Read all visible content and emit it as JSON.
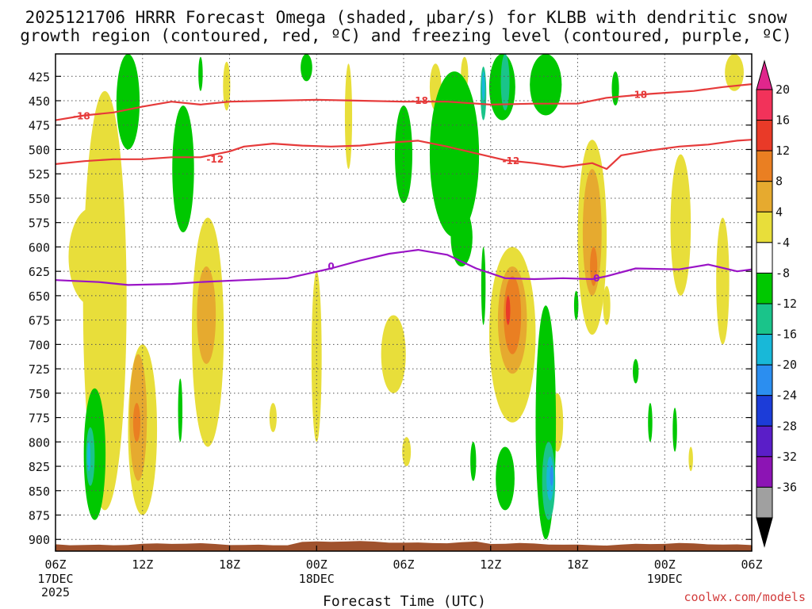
{
  "chart_data": {
    "type": "heatmap",
    "title_line1": "2025121706 HRRR Forecast Omega (shaded, μbar/s) for KLBB with dendritic snow",
    "title_line2": "growth region (contoured, red, ºC) and freezing level (contoured, purple, ºC)",
    "xlabel": "Forecast Time (UTC)",
    "credit": "coolwx.com/models",
    "x_ticks": [
      {
        "hour": 0,
        "label": "06Z",
        "sub": [
          "17DEC",
          "2025"
        ]
      },
      {
        "hour": 6,
        "label": "12Z",
        "sub": []
      },
      {
        "hour": 12,
        "label": "18Z",
        "sub": []
      },
      {
        "hour": 18,
        "label": "00Z",
        "sub": [
          "18DEC"
        ]
      },
      {
        "hour": 24,
        "label": "06Z",
        "sub": []
      },
      {
        "hour": 30,
        "label": "12Z",
        "sub": []
      },
      {
        "hour": 36,
        "label": "18Z",
        "sub": []
      },
      {
        "hour": 42,
        "label": "00Z",
        "sub": [
          "19DEC"
        ]
      },
      {
        "hour": 48,
        "label": "06Z",
        "sub": []
      }
    ],
    "x_range": [
      0,
      48
    ],
    "y_ticks": [
      425,
      450,
      475,
      500,
      525,
      550,
      575,
      600,
      625,
      650,
      675,
      700,
      725,
      750,
      775,
      800,
      825,
      850,
      875,
      900
    ],
    "y_range": [
      402,
      912
    ],
    "surface_pressure": 905,
    "colorbar": {
      "labels": [
        "20",
        "16",
        "12",
        "8",
        "4",
        "-4",
        "-8",
        "-12",
        "-16",
        "-20",
        "-24",
        "-28",
        "-32",
        "-36"
      ],
      "colors": [
        "#f2325a",
        "#e93a28",
        "#ea7f22",
        "#e6aa2f",
        "#e8de3a",
        "#ffffff",
        "#00c800",
        "#1ac48a",
        "#18b8d8",
        "#2b8ef0",
        "#1c3cd8",
        "#5a1ec8",
        "#8c14b4",
        "#a0a0a0"
      ],
      "top_color": "#e0268c",
      "bottom_color": "#000000"
    },
    "contours": [
      {
        "name": "dgz-minus18",
        "label": "-18",
        "color": "#e63a3a",
        "points": [
          [
            0,
            470
          ],
          [
            2,
            465
          ],
          [
            4,
            462
          ],
          [
            6,
            456
          ],
          [
            8,
            451
          ],
          [
            10,
            454
          ],
          [
            12,
            451
          ],
          [
            15,
            450
          ],
          [
            18,
            449
          ],
          [
            21,
            450
          ],
          [
            24,
            451
          ],
          [
            27,
            451
          ],
          [
            30,
            454
          ],
          [
            33,
            453
          ],
          [
            36,
            453
          ],
          [
            38,
            447
          ],
          [
            41,
            443
          ],
          [
            44,
            440
          ],
          [
            46,
            436
          ],
          [
            48,
            433
          ]
        ],
        "label_positions": [
          [
            1.8,
            466
          ],
          [
            25.1,
            450
          ],
          [
            40.2,
            444
          ]
        ]
      },
      {
        "name": "dgz-minus12",
        "label": "-12",
        "color": "#e63a3a",
        "points": [
          [
            0,
            515
          ],
          [
            2,
            512
          ],
          [
            4,
            510
          ],
          [
            6,
            510
          ],
          [
            8,
            508
          ],
          [
            10,
            508
          ],
          [
            12,
            502
          ],
          [
            13,
            497
          ],
          [
            15,
            494
          ],
          [
            17,
            496
          ],
          [
            19,
            497
          ],
          [
            21,
            496
          ],
          [
            23,
            493
          ],
          [
            25,
            491
          ],
          [
            27,
            497
          ],
          [
            29,
            504
          ],
          [
            31,
            511
          ],
          [
            33,
            514
          ],
          [
            35,
            518
          ],
          [
            37,
            514
          ],
          [
            38,
            520
          ],
          [
            39,
            506
          ],
          [
            41,
            501
          ],
          [
            43,
            497
          ],
          [
            45,
            495
          ],
          [
            47,
            491
          ],
          [
            48,
            490
          ]
        ],
        "label_positions": [
          [
            11,
            510
          ],
          [
            31.4,
            512
          ]
        ]
      },
      {
        "name": "freezing-level",
        "label": "0",
        "color": "#9a14c6",
        "points": [
          [
            0,
            634
          ],
          [
            3,
            636
          ],
          [
            5,
            639
          ],
          [
            8,
            638
          ],
          [
            10,
            636
          ],
          [
            13,
            634
          ],
          [
            16,
            632
          ],
          [
            19,
            622
          ],
          [
            21,
            614
          ],
          [
            23,
            607
          ],
          [
            25,
            603
          ],
          [
            27,
            608
          ],
          [
            29,
            622
          ],
          [
            31,
            632
          ],
          [
            33,
            633
          ],
          [
            35,
            632
          ],
          [
            37,
            633
          ],
          [
            38,
            630
          ],
          [
            40,
            622
          ],
          [
            43,
            623
          ],
          [
            45,
            618
          ],
          [
            47,
            625
          ],
          [
            48,
            623
          ]
        ],
        "label_positions": [
          [
            19,
            620
          ],
          [
            37.3,
            632
          ]
        ]
      }
    ],
    "shaded_cells": [
      {
        "value": 4,
        "hour": 3.4,
        "hour_w": 3.0,
        "p_top": 440,
        "p_bot": 870
      },
      {
        "value": 4,
        "hour": 2.5,
        "hour_w": 3.2,
        "p_top": 560,
        "p_bot": 660
      },
      {
        "value": 4,
        "hour": 6.0,
        "hour_w": 2.0,
        "p_top": 700,
        "p_bot": 875
      },
      {
        "value": 8,
        "hour": 5.7,
        "hour_w": 1.2,
        "p_top": 710,
        "p_bot": 840
      },
      {
        "value": 12,
        "hour": 5.6,
        "hour_w": 0.5,
        "p_top": 760,
        "p_bot": 800
      },
      {
        "value": 4,
        "hour": 10.5,
        "hour_w": 2.2,
        "p_top": 570,
        "p_bot": 805
      },
      {
        "value": 8,
        "hour": 10.4,
        "hour_w": 1.3,
        "p_top": 620,
        "p_bot": 720
      },
      {
        "value": 4,
        "hour": 11.8,
        "hour_w": 0.5,
        "p_top": 410,
        "p_bot": 460
      },
      {
        "value": 4,
        "hour": 18.0,
        "hour_w": 0.7,
        "p_top": 625,
        "p_bot": 800
      },
      {
        "value": 4,
        "hour": 20.2,
        "hour_w": 0.5,
        "p_top": 412,
        "p_bot": 520
      },
      {
        "value": 4,
        "hour": 15.0,
        "hour_w": 0.5,
        "p_top": 760,
        "p_bot": 790
      },
      {
        "value": 4,
        "hour": 23.3,
        "hour_w": 1.7,
        "p_top": 670,
        "p_bot": 750
      },
      {
        "value": 4,
        "hour": 24.2,
        "hour_w": 0.6,
        "p_top": 795,
        "p_bot": 825
      },
      {
        "value": 4,
        "hour": 26.2,
        "hour_w": 0.8,
        "p_top": 412,
        "p_bot": 460
      },
      {
        "value": 4,
        "hour": 28.2,
        "hour_w": 0.5,
        "p_top": 405,
        "p_bot": 440
      },
      {
        "value": 4,
        "hour": 31.5,
        "hour_w": 3.2,
        "p_top": 600,
        "p_bot": 780
      },
      {
        "value": 8,
        "hour": 31.5,
        "hour_w": 2.0,
        "p_top": 620,
        "p_bot": 730
      },
      {
        "value": 12,
        "hour": 31.5,
        "hour_w": 1.2,
        "p_top": 630,
        "p_bot": 710
      },
      {
        "value": 16,
        "hour": 31.2,
        "hour_w": 0.3,
        "p_top": 650,
        "p_bot": 680
      },
      {
        "value": 4,
        "hour": 34.6,
        "hour_w": 0.8,
        "p_top": 750,
        "p_bot": 810
      },
      {
        "value": 4,
        "hour": 37.0,
        "hour_w": 2.0,
        "p_top": 490,
        "p_bot": 690
      },
      {
        "value": 8,
        "hour": 37.0,
        "hour_w": 1.3,
        "p_top": 520,
        "p_bot": 650
      },
      {
        "value": 12,
        "hour": 37.1,
        "hour_w": 0.5,
        "p_top": 600,
        "p_bot": 640
      },
      {
        "value": 4,
        "hour": 38.0,
        "hour_w": 0.5,
        "p_top": 640,
        "p_bot": 680
      },
      {
        "value": 4,
        "hour": 43.1,
        "hour_w": 1.4,
        "p_top": 505,
        "p_bot": 650
      },
      {
        "value": 4,
        "hour": 46.0,
        "hour_w": 0.9,
        "p_top": 570,
        "p_bot": 700
      },
      {
        "value": 4,
        "hour": 43.8,
        "hour_w": 0.3,
        "p_top": 805,
        "p_bot": 830
      },
      {
        "value": 4,
        "hour": 46.8,
        "hour_w": 1.3,
        "p_top": 402,
        "p_bot": 440
      },
      {
        "value": -8,
        "hour": 2.7,
        "hour_w": 1.5,
        "p_top": 745,
        "p_bot": 880
      },
      {
        "value": -12,
        "hour": 2.4,
        "hour_w": 0.6,
        "p_top": 785,
        "p_bot": 845
      },
      {
        "value": -16,
        "hour": 2.3,
        "hour_w": 0.2,
        "p_top": 800,
        "p_bot": 830
      },
      {
        "value": -8,
        "hour": 5.0,
        "hour_w": 1.6,
        "p_top": 402,
        "p_bot": 500
      },
      {
        "value": -8,
        "hour": 8.8,
        "hour_w": 1.5,
        "p_top": 455,
        "p_bot": 585
      },
      {
        "value": -8,
        "hour": 8.6,
        "hour_w": 0.3,
        "p_top": 735,
        "p_bot": 800
      },
      {
        "value": -8,
        "hour": 17.3,
        "hour_w": 0.8,
        "p_top": 402,
        "p_bot": 430
      },
      {
        "value": -8,
        "hour": 24.0,
        "hour_w": 1.2,
        "p_top": 455,
        "p_bot": 555
      },
      {
        "value": -8,
        "hour": 27.5,
        "hour_w": 3.4,
        "p_top": 420,
        "p_bot": 590
      },
      {
        "value": -8,
        "hour": 28.0,
        "hour_w": 1.5,
        "p_top": 560,
        "p_bot": 620
      },
      {
        "value": -12,
        "hour": 29.5,
        "hour_w": 0.4,
        "p_top": 415,
        "p_bot": 470
      },
      {
        "value": -16,
        "hour": 29.5,
        "hour_w": 0.2,
        "p_top": 420,
        "p_bot": 450
      },
      {
        "value": -8,
        "hour": 30.8,
        "hour_w": 1.8,
        "p_top": 402,
        "p_bot": 470
      },
      {
        "value": -12,
        "hour": 31.0,
        "hour_w": 0.6,
        "p_top": 402,
        "p_bot": 460
      },
      {
        "value": -8,
        "hour": 33.8,
        "hour_w": 2.2,
        "p_top": 402,
        "p_bot": 465
      },
      {
        "value": -8,
        "hour": 31.0,
        "hour_w": 1.3,
        "p_top": 805,
        "p_bot": 870
      },
      {
        "value": -8,
        "hour": 29.5,
        "hour_w": 0.3,
        "p_top": 600,
        "p_bot": 680
      },
      {
        "value": -8,
        "hour": 33.8,
        "hour_w": 1.4,
        "p_top": 660,
        "p_bot": 900
      },
      {
        "value": -12,
        "hour": 34.0,
        "hour_w": 0.9,
        "p_top": 800,
        "p_bot": 880
      },
      {
        "value": -16,
        "hour": 34.1,
        "hour_w": 0.5,
        "p_top": 815,
        "p_bot": 860
      },
      {
        "value": -20,
        "hour": 34.2,
        "hour_w": 0.2,
        "p_top": 825,
        "p_bot": 845
      },
      {
        "value": -8,
        "hour": 35.9,
        "hour_w": 0.3,
        "p_top": 645,
        "p_bot": 675
      },
      {
        "value": -8,
        "hour": 38.6,
        "hour_w": 0.5,
        "p_top": 420,
        "p_bot": 455
      },
      {
        "value": -8,
        "hour": 40.0,
        "hour_w": 0.4,
        "p_top": 715,
        "p_bot": 740
      },
      {
        "value": -8,
        "hour": 42.7,
        "hour_w": 0.3,
        "p_top": 765,
        "p_bot": 810
      },
      {
        "value": -8,
        "hour": 41.0,
        "hour_w": 0.3,
        "p_top": 760,
        "p_bot": 800
      },
      {
        "value": -8,
        "hour": 10.0,
        "hour_w": 0.3,
        "p_top": 405,
        "p_bot": 440
      },
      {
        "value": -8,
        "hour": 28.8,
        "hour_w": 0.4,
        "p_top": 800,
        "p_bot": 840
      }
    ]
  }
}
